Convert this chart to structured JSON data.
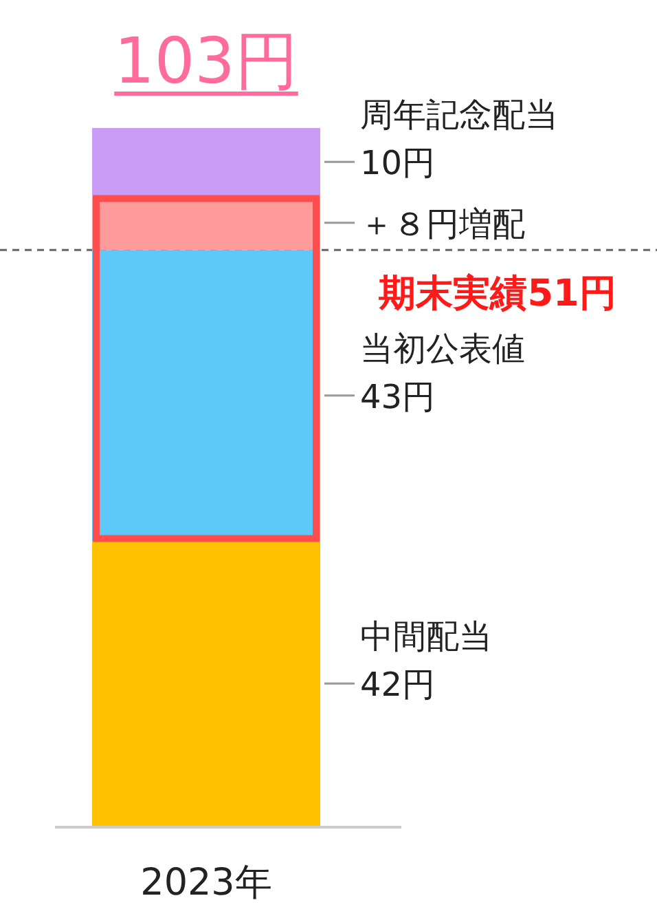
{
  "chart_data": {
    "type": "bar",
    "stacked": true,
    "categories": [
      "2023年"
    ],
    "series": [
      {
        "name": "中間配当",
        "color": "#ffc000",
        "values": [
          42
        ],
        "value_labels": [
          "42円"
        ]
      },
      {
        "name": "当初公表値",
        "color": "#5ec8f8",
        "values": [
          43
        ],
        "value_labels": [
          "43円"
        ]
      },
      {
        "name": "＋８円増配",
        "color": "#ff9b9b",
        "values": [
          8
        ]
      },
      {
        "name": "周年記念配当",
        "color": "#c99cf5",
        "values": [
          10
        ],
        "value_labels": [
          "10円"
        ]
      }
    ],
    "totals": [
      "103円"
    ],
    "ref_lines": [
      {
        "axis": "y",
        "value": 85,
        "color": "#666666",
        "line_style": "dashed"
      }
    ],
    "annotations": [
      "期末実績51円"
    ]
  }
}
